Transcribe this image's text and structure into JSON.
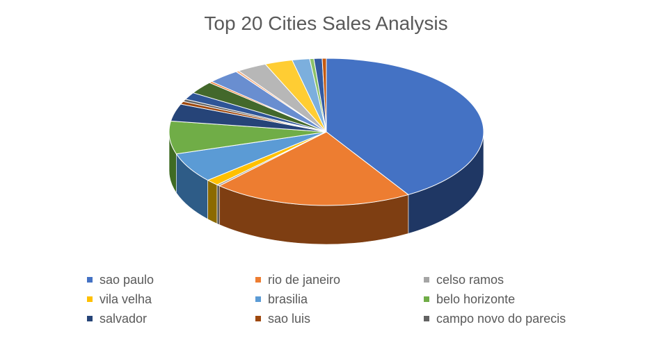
{
  "chart_data": {
    "type": "pie",
    "title": "Top 20 Cities Sales Analysis",
    "legend_position": "bottom",
    "slices": [
      {
        "label": "sao paulo",
        "value": 39.0,
        "color": "#4472C4",
        "dark": "#1F3764"
      },
      {
        "label": "rio de janeiro",
        "value": 19.5,
        "color": "#ED7D31",
        "dark": "#7E3E12"
      },
      {
        "label": "celso ramos",
        "value": 0.3,
        "color": "#A5A5A5",
        "dark": "#5A5A5A"
      },
      {
        "label": "vila velha",
        "value": 1.3,
        "color": "#FFC000",
        "dark": "#8C6A00"
      },
      {
        "label": "brasilia",
        "value": 6.2,
        "color": "#5B9BD5",
        "dark": "#2E5C87"
      },
      {
        "label": "belo horizonte",
        "value": 6.8,
        "color": "#70AD47",
        "dark": "#3F6B23"
      },
      {
        "label": "salvador",
        "value": 3.6,
        "color": "#264478",
        "dark": "#14243F"
      },
      {
        "label": "sao luis",
        "value": 0.6,
        "color": "#9E480E",
        "dark": "#572707"
      },
      {
        "label": "campo novo do parecis",
        "value": 0.5,
        "color": "#636363",
        "dark": "#353535"
      },
      {
        "value": 1.5,
        "color": "#2F5597",
        "dark": "#182C4D"
      },
      {
        "value": 2.6,
        "color": "#43682B",
        "dark": "#243916"
      },
      {
        "value": 0.3,
        "color": "#ED7D31",
        "dark": "#7E3E12"
      },
      {
        "value": 3.1,
        "color": "#698ED0",
        "dark": "#34486A"
      },
      {
        "value": 0.3,
        "color": "#F4B183",
        "dark": "#8A5A36"
      },
      {
        "value": 2.9,
        "color": "#B7B7B7",
        "dark": "#5F5F5F"
      },
      {
        "value": 2.7,
        "color": "#FFCD33",
        "dark": "#8C6E13"
      },
      {
        "value": 1.7,
        "color": "#7CAFDD",
        "dark": "#3D607F"
      },
      {
        "value": 0.4,
        "color": "#8CC168",
        "dark": "#4A6A34"
      },
      {
        "value": 0.8,
        "color": "#335AA1",
        "dark": "#1A2E52"
      },
      {
        "value": 0.4,
        "color": "#C55A11",
        "dark": "#6A2F08"
      }
    ]
  }
}
